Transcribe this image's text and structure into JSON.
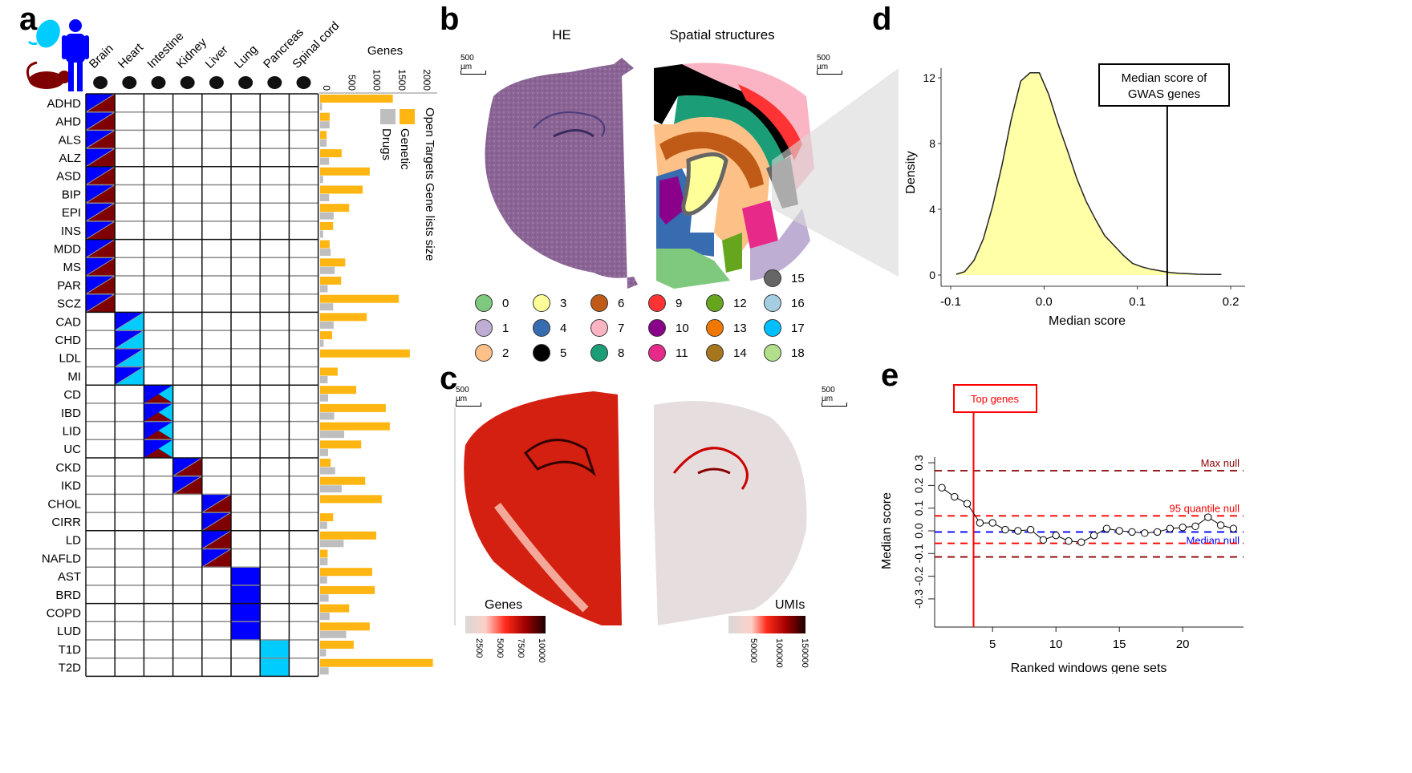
{
  "figure": {
    "panel_labels": [
      "a",
      "b",
      "c",
      "d",
      "e"
    ]
  },
  "panel_a": {
    "species_icons": [
      "embryo-icon",
      "mouse-icon",
      "human-icon"
    ],
    "tissues": [
      {
        "name": "Brain",
        "icon": "brain-icon"
      },
      {
        "name": "Heart",
        "icon": "heart-icon"
      },
      {
        "name": "Intestine",
        "icon": "intestine-icon"
      },
      {
        "name": "Kidney",
        "icon": "kidney-icon"
      },
      {
        "name": "Liver",
        "icon": "liver-icon"
      },
      {
        "name": "Lung",
        "icon": "lung-icon"
      },
      {
        "name": "Pancreas",
        "icon": "pancreas-icon"
      },
      {
        "name": "Spinal cord",
        "icon": "spinal-cord-icon"
      }
    ],
    "species_colors": {
      "human": "#0000ff",
      "mouse": "#7f0000",
      "embryo": "#00ccff"
    },
    "cell_legend": "Cell fill: H=human (blue), M=mouse (dark red), E=embryo (cyan); combos split diagonally",
    "diseases": [
      {
        "name": "ADHD",
        "tissue": 0,
        "species": "HM"
      },
      {
        "name": "AHD",
        "tissue": 0,
        "species": "HM",
        "extra": {
          "tissue": 7,
          "species": "E"
        }
      },
      {
        "name": "ALS",
        "tissue": 0,
        "species": "HM",
        "extra": {
          "tissue": 7,
          "species": "E"
        }
      },
      {
        "name": "ALZ",
        "tissue": 0,
        "species": "HM"
      },
      {
        "name": "ASD",
        "tissue": 0,
        "species": "HM"
      },
      {
        "name": "BIP",
        "tissue": 0,
        "species": "HM"
      },
      {
        "name": "EPI",
        "tissue": 0,
        "species": "HM"
      },
      {
        "name": "INS",
        "tissue": 0,
        "species": "HM"
      },
      {
        "name": "MDD",
        "tissue": 0,
        "species": "HM"
      },
      {
        "name": "MS",
        "tissue": 0,
        "species": "HM",
        "extra": {
          "tissue": 7,
          "species": "E"
        }
      },
      {
        "name": "PAR",
        "tissue": 0,
        "species": "HM"
      },
      {
        "name": "SCZ",
        "tissue": 0,
        "species": "HM"
      },
      {
        "name": "CAD",
        "tissue": 1,
        "species": "HE",
        "extra": {
          "tissue": 4,
          "species": "HM"
        }
      },
      {
        "name": "CHD",
        "tissue": 1,
        "species": "HE"
      },
      {
        "name": "LDL",
        "tissue": 1,
        "species": "HE",
        "extra": {
          "tissue": 4,
          "species": "HM"
        }
      },
      {
        "name": "MI",
        "tissue": 1,
        "species": "HE",
        "extra": {
          "tissue": 4,
          "species": "HM"
        }
      },
      {
        "name": "CD",
        "tissue": 2,
        "species": "HME"
      },
      {
        "name": "IBD",
        "tissue": 2,
        "species": "HME"
      },
      {
        "name": "LID",
        "tissue": 2,
        "species": "HME"
      },
      {
        "name": "UC",
        "tissue": 2,
        "species": "HME"
      },
      {
        "name": "CKD",
        "tissue": 3,
        "species": "HM"
      },
      {
        "name": "IKD",
        "tissue": 3,
        "species": "HM"
      },
      {
        "name": "CHOL",
        "tissue": 4,
        "species": "HM"
      },
      {
        "name": "CIRR",
        "tissue": 4,
        "species": "HM"
      },
      {
        "name": "LD",
        "tissue": 4,
        "species": "HM"
      },
      {
        "name": "NAFLD",
        "tissue": 4,
        "species": "HM"
      },
      {
        "name": "AST",
        "tissue": 5,
        "species": "H"
      },
      {
        "name": "BRD",
        "tissue": 5,
        "species": "H"
      },
      {
        "name": "COPD",
        "tissue": 5,
        "species": "H"
      },
      {
        "name": "LUD",
        "tissue": 5,
        "species": "H"
      },
      {
        "name": "T1D",
        "tissue": 6,
        "species": "E"
      },
      {
        "name": "T2D",
        "tissue": 6,
        "species": "E"
      }
    ],
    "bar_axis": {
      "title": "Genes",
      "ticks": [
        "0",
        "500",
        "1000",
        "1500",
        "2000"
      ]
    },
    "bar_legend": {
      "title": "Open Targets Gene lists size",
      "items": [
        {
          "label": "Genetic",
          "color": "#ffb612"
        },
        {
          "label": "Drugs",
          "color": "#bebebe"
        }
      ]
    }
  },
  "panel_b": {
    "titles": [
      "HE",
      "Spatial structures"
    ],
    "scale_label": "500 µm",
    "clusters": [
      {
        "id": "0",
        "color": "#7fc97f"
      },
      {
        "id": "1",
        "color": "#beaed4"
      },
      {
        "id": "2",
        "color": "#fdc086"
      },
      {
        "id": "3",
        "color": "#ffff99"
      },
      {
        "id": "4",
        "color": "#386cb0"
      },
      {
        "id": "5",
        "color": "#000000"
      },
      {
        "id": "6",
        "color": "#bf5b17"
      },
      {
        "id": "7",
        "color": "#fbb4c4"
      },
      {
        "id": "8",
        "color": "#1b9e77"
      },
      {
        "id": "9",
        "color": "#ff3333"
      },
      {
        "id": "10",
        "color": "#8b008b"
      },
      {
        "id": "11",
        "color": "#e7298a"
      },
      {
        "id": "12",
        "color": "#66a61e"
      },
      {
        "id": "13",
        "color": "#f07800"
      },
      {
        "id": "14",
        "color": "#a6761d"
      },
      {
        "id": "15",
        "color": "#666666"
      },
      {
        "id": "16",
        "color": "#a6cee3"
      },
      {
        "id": "17",
        "color": "#00bfff"
      },
      {
        "id": "18",
        "color": "#b2df8a"
      }
    ]
  },
  "panel_c": {
    "scale_label": "500 µm",
    "colorbars": [
      {
        "title": "Genes",
        "ticks": [
          "2500",
          "5000",
          "7500",
          "10000"
        ]
      },
      {
        "title": "UMIs",
        "ticks": [
          "50000",
          "100000",
          "150000"
        ]
      }
    ]
  },
  "chart_data": [
    {
      "id": "panel_a_bars",
      "type": "bar",
      "orientation": "horizontal",
      "title": "Open Targets Gene lists size",
      "xlabel": "Genes",
      "xlim": [
        0,
        2000
      ],
      "categories": [
        "ADHD",
        "AHD",
        "ALS",
        "ALZ",
        "ASD",
        "BIP",
        "EPI",
        "INS",
        "MDD",
        "MS",
        "PAR",
        "SCZ",
        "CAD",
        "CHD",
        "LDL",
        "MI",
        "CD",
        "IBD",
        "LID",
        "UC",
        "CKD",
        "IKD",
        "CHOL",
        "CIRR",
        "LD",
        "NAFLD",
        "AST",
        "BRD",
        "COPD",
        "LUD",
        "T1D",
        "T2D"
      ],
      "series": [
        {
          "name": "Genetic",
          "color": "#ffb612",
          "values": [
            1450,
            190,
            130,
            430,
            990,
            850,
            580,
            260,
            190,
            500,
            420,
            1570,
            930,
            240,
            1790,
            350,
            720,
            1310,
            1390,
            820,
            210,
            900,
            1230,
            260,
            1120,
            150,
            1040,
            1090,
            580,
            990,
            670,
            2250
          ]
        },
        {
          "name": "Drugs",
          "color": "#bebebe",
          "values": [
            40,
            190,
            130,
            180,
            60,
            180,
            270,
            60,
            210,
            290,
            150,
            260,
            270,
            70,
            0,
            150,
            160,
            280,
            480,
            160,
            300,
            430,
            0,
            140,
            470,
            150,
            140,
            170,
            190,
            520,
            120,
            170
          ]
        }
      ]
    },
    {
      "id": "panel_d_density",
      "type": "area",
      "title": "",
      "xlabel": "Median score",
      "ylabel": "Density",
      "xlim": [
        -0.1,
        0.2
      ],
      "ylim": [
        0,
        12
      ],
      "xticks": [
        "-0.1",
        "0.0",
        "0.1",
        "0.2"
      ],
      "yticks": [
        "0",
        "4",
        "8",
        "12"
      ],
      "x": [
        -0.094,
        -0.085,
        -0.075,
        -0.065,
        -0.055,
        -0.045,
        -0.035,
        -0.025,
        -0.015,
        -0.005,
        0.005,
        0.015,
        0.025,
        0.035,
        0.045,
        0.055,
        0.065,
        0.075,
        0.085,
        0.095,
        0.105,
        0.115,
        0.125,
        0.135,
        0.145,
        0.155,
        0.165,
        0.175,
        0.19
      ],
      "y": [
        0.05,
        0.2,
        0.9,
        2.2,
        4.2,
        6.7,
        9.5,
        11.8,
        12.3,
        12.3,
        11.0,
        9.2,
        7.6,
        5.9,
        4.5,
        3.4,
        2.4,
        1.8,
        1.2,
        0.7,
        0.5,
        0.35,
        0.25,
        0.15,
        0.1,
        0.08,
        0.05,
        0.04,
        0.04
      ],
      "annotation": {
        "label_lines": [
          "Median score of",
          "GWAS genes"
        ],
        "x": 0.132
      }
    },
    {
      "id": "panel_e_line",
      "type": "line",
      "title": "",
      "xlabel": "Ranked windows gene sets",
      "ylabel": "Median score",
      "xlim": [
        0,
        25
      ],
      "ylim": [
        -0.3,
        0.3
      ],
      "xticks": [
        "5",
        "10",
        "15",
        "20"
      ],
      "yticks": [
        "-0.3",
        "-0.2",
        "-0.1",
        "0.0",
        "0.1",
        "0.2",
        "0.3"
      ],
      "x": [
        1,
        2,
        3,
        4,
        5,
        6,
        7,
        8,
        9,
        10,
        11,
        12,
        13,
        14,
        15,
        16,
        17,
        18,
        19,
        20,
        21,
        22,
        23,
        24
      ],
      "y": [
        0.19,
        0.15,
        0.12,
        0.035,
        0.035,
        0.005,
        0.0,
        0.005,
        -0.04,
        -0.02,
        -0.045,
        -0.05,
        -0.02,
        0.01,
        0.0,
        -0.005,
        -0.01,
        -0.005,
        0.01,
        0.015,
        0.02,
        0.06,
        0.025,
        0.01
      ],
      "hlines": [
        {
          "label": "Max null",
          "y": 0.265,
          "color": "#8b0000"
        },
        {
          "label": "95 quantile null",
          "y": 0.066,
          "color": "#ff0000"
        },
        {
          "label": "Median null",
          "y": -0.005,
          "color": "#0000ff"
        },
        {
          "label": "",
          "y": -0.055,
          "color": "#ff0000"
        },
        {
          "label": "",
          "y": -0.115,
          "color": "#8b0000"
        }
      ],
      "vline": {
        "label": "Top genes",
        "x": 3.5,
        "color": "#ff0000"
      }
    }
  ]
}
